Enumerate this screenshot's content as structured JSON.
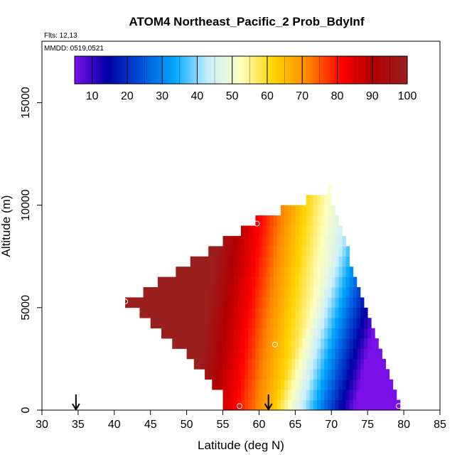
{
  "chart_data": {
    "type": "heatmap",
    "title": "ATOM4 Northeast_Pacific_2 Prob_BdyInf",
    "subtitle_flts": "Flts: 12,13",
    "subtitle_mmdd": "MMDD: 0519,0521",
    "xlabel": "Latitude (deg N)",
    "ylabel": "Altitude (m)",
    "xlim": [
      30,
      85
    ],
    "ylim": [
      0,
      18000
    ],
    "x_ticks": [
      "30",
      "35",
      "40",
      "45",
      "50",
      "55",
      "60",
      "65",
      "70",
      "75",
      "80",
      "85"
    ],
    "y_ticks": [
      "0",
      "5000",
      "10000",
      "15000"
    ],
    "colorbar": {
      "range": [
        5,
        100
      ],
      "tick_labels": [
        "10",
        "20",
        "30",
        "40",
        "50",
        "60",
        "70",
        "80",
        "90",
        "100"
      ],
      "colors": [
        "#7a10e8",
        "#0000a6",
        "#0050d8",
        "#00a8ff",
        "#c8eeff",
        "#ffffc0",
        "#ffd400",
        "#ff8800",
        "#ff0000",
        "#b00000",
        "#9a2020"
      ]
    },
    "row_height_m": 500,
    "rows": [
      {
        "alt": 0,
        "x0": 55.0,
        "x1": 79.5
      },
      {
        "alt": 500,
        "x0": 55.0,
        "x1": 79.0
      },
      {
        "alt": 1000,
        "x0": 53.5,
        "x1": 78.5
      },
      {
        "alt": 1500,
        "x0": 52.5,
        "x1": 78.0
      },
      {
        "alt": 2000,
        "x0": 51.0,
        "x1": 77.5
      },
      {
        "alt": 2500,
        "x0": 50.0,
        "x1": 77.0
      },
      {
        "alt": 3000,
        "x0": 48.0,
        "x1": 76.5
      },
      {
        "alt": 3500,
        "x0": 46.5,
        "x1": 76.0
      },
      {
        "alt": 4000,
        "x0": 45.0,
        "x1": 75.5
      },
      {
        "alt": 4500,
        "x0": 43.5,
        "x1": 75.0
      },
      {
        "alt": 5000,
        "x0": 41.5,
        "x1": 74.5
      },
      {
        "alt": 5500,
        "x0": 44.0,
        "x1": 74.0
      },
      {
        "alt": 6000,
        "x0": 46.0,
        "x1": 73.5
      },
      {
        "alt": 6500,
        "x0": 48.5,
        "x1": 73.0
      },
      {
        "alt": 7000,
        "x0": 50.5,
        "x1": 72.5
      },
      {
        "alt": 7500,
        "x0": 53.0,
        "x1": 72.5
      },
      {
        "alt": 8000,
        "x0": 55.0,
        "x1": 72.0
      },
      {
        "alt": 8500,
        "x0": 57.5,
        "x1": 71.5
      },
      {
        "alt": 9000,
        "x0": 59.5,
        "x1": 71.0
      },
      {
        "alt": 9500,
        "x0": 63.0,
        "x1": 70.5
      },
      {
        "alt": 10000,
        "x0": 66.5,
        "x1": 70.0
      },
      {
        "alt": 10500,
        "x0": 69.5,
        "x1": 70.0
      }
    ],
    "markers": [
      {
        "lat": 57.3,
        "alt": 200
      },
      {
        "lat": 62.2,
        "alt": 3200
      },
      {
        "lat": 41.5,
        "alt": 5300
      },
      {
        "lat": 59.7,
        "alt": 9100
      },
      {
        "lat": 69.6,
        "alt": 10700
      },
      {
        "lat": 79.3,
        "alt": 200
      }
    ],
    "arrows": [
      {
        "lat": 34.7
      },
      {
        "lat": 61.3
      }
    ]
  }
}
